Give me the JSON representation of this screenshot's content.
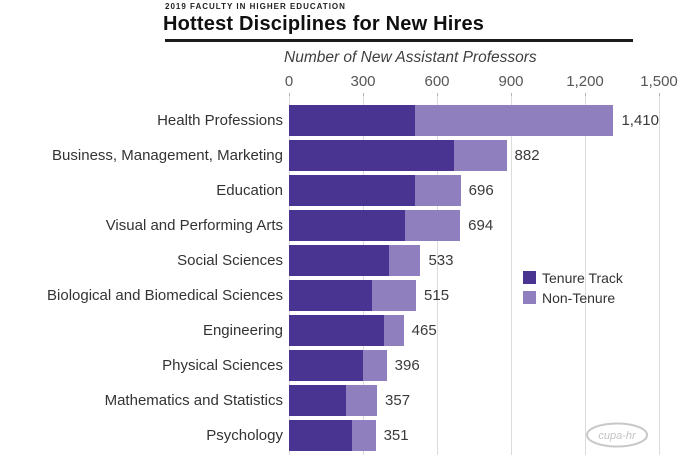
{
  "header": {
    "kicker": "2019 FACULTY IN HIGHER EDUCATION",
    "title": "Hottest Disciplines for New Hires"
  },
  "chart_data": {
    "type": "bar",
    "orientation": "horizontal",
    "stacked": true,
    "title": "Hottest Disciplines for New Hires",
    "axis_label": "Number of New Assistant Professors",
    "xlim": [
      0,
      1500
    ],
    "x_ticks": [
      "0",
      "300",
      "600",
      "900",
      "1,200",
      "1,500"
    ],
    "x_tick_values": [
      0,
      300,
      600,
      900,
      1200,
      1500
    ],
    "grid": true,
    "legend_position": "right-middle",
    "categories": [
      "Health Professions",
      "Business, Management, Marketing",
      "Education",
      "Visual and Performing Arts",
      "Social Sciences",
      "Biological and Biomedical Sciences",
      "Engineering",
      "Physical Sciences",
      "Mathematics and Statistics",
      "Psychology"
    ],
    "series": [
      {
        "name": "Tenure Track",
        "color": "#4a3491",
        "values": [
          548,
          668,
          510,
          470,
          407,
          337,
          385,
          299,
          232,
          254
        ]
      },
      {
        "name": "Non-Tenure",
        "color": "#8f7fbe",
        "values": [
          862,
          214,
          186,
          224,
          126,
          178,
          80,
          97,
          125,
          97
        ]
      }
    ],
    "totals": [
      1410,
      882,
      696,
      694,
      533,
      515,
      465,
      396,
      357,
      351
    ],
    "total_labels": [
      "1,410",
      "882",
      "696",
      "694",
      "533",
      "515",
      "465",
      "396",
      "357",
      "351"
    ]
  },
  "colors": {
    "tenure": "#4a3491",
    "non_tenure": "#8f7fbe",
    "gridline": "#dcdcdc",
    "text": "#333333"
  },
  "logo": {
    "text": "cupa-hr"
  }
}
